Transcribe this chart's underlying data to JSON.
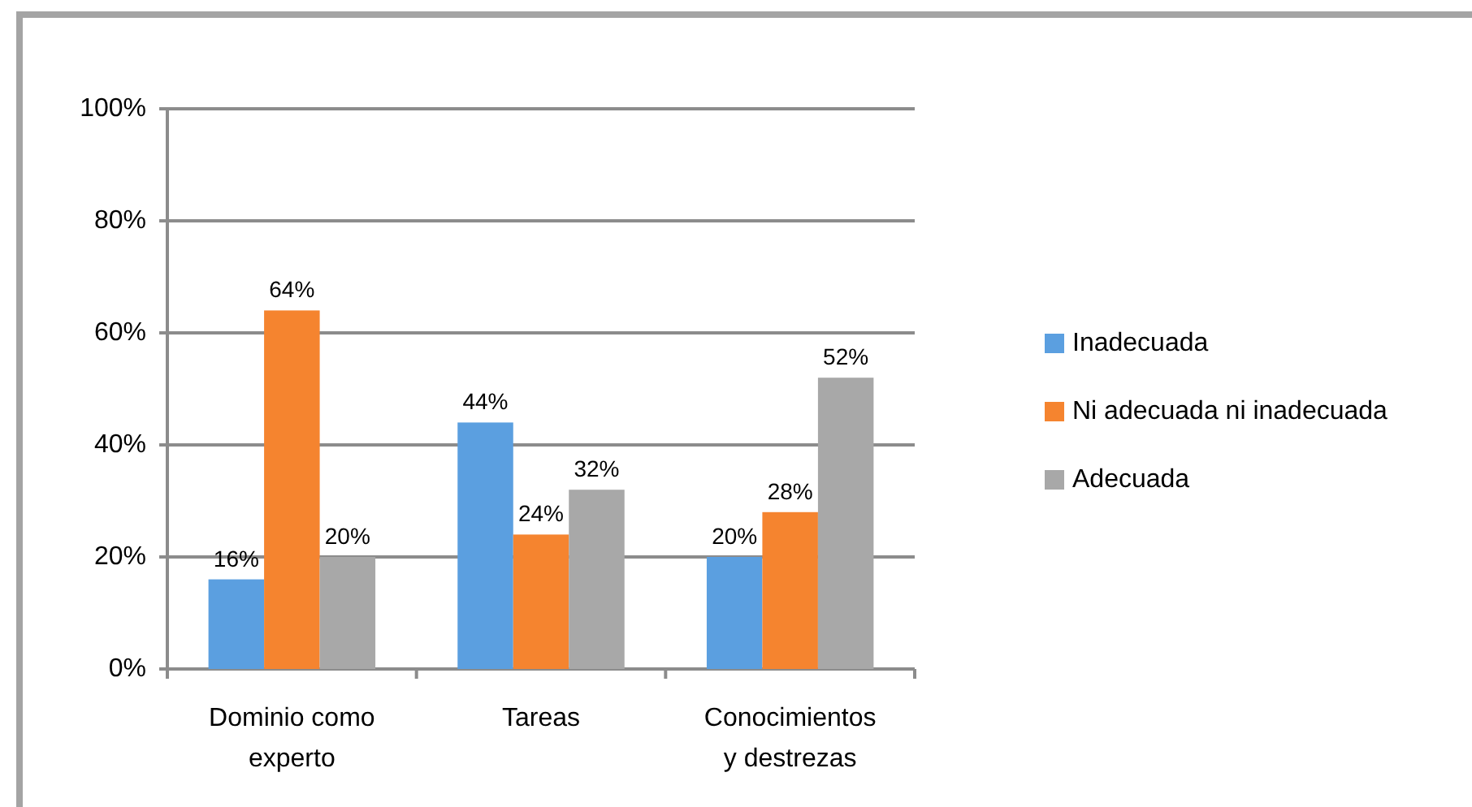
{
  "chart_data": {
    "type": "bar",
    "categories": [
      "Dominio como experto",
      "Tareas",
      "Conocimientos y destrezas"
    ],
    "series": [
      {
        "name": "Inadecuada",
        "color": "#5b9fe0",
        "values": [
          16,
          44,
          20
        ],
        "value_labels": [
          "16%",
          "44%",
          "20%"
        ]
      },
      {
        "name": "Ni adecuada ni inadecuada",
        "color": "#f5842f",
        "values": [
          64,
          24,
          28
        ],
        "value_labels": [
          "64%",
          "24%",
          "28%"
        ]
      },
      {
        "name": "Adecuada",
        "color": "#a8a8a8",
        "values": [
          20,
          32,
          52
        ],
        "value_labels": [
          "20%",
          "32%",
          "52%"
        ]
      }
    ],
    "ylim": [
      0,
      100
    ],
    "yticks": [
      {
        "value": 0,
        "label": "0%"
      },
      {
        "value": 20,
        "label": "20%"
      },
      {
        "value": 40,
        "label": "40%"
      },
      {
        "value": 60,
        "label": "60%"
      },
      {
        "value": 80,
        "label": "80%"
      },
      {
        "value": 100,
        "label": "100%"
      }
    ],
    "grid": "y",
    "legend": "right"
  }
}
